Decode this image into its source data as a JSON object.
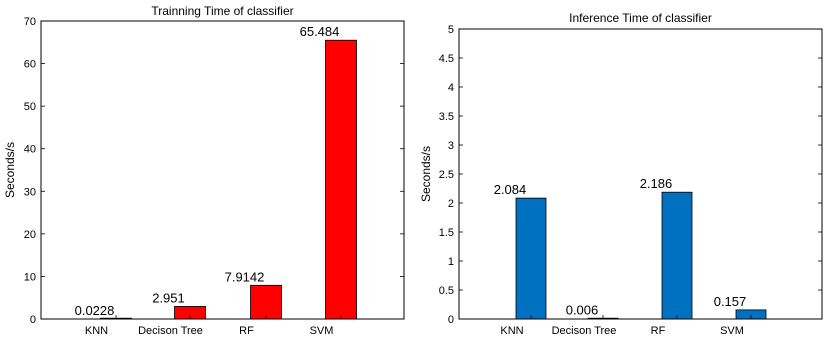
{
  "chart_data": [
    {
      "type": "bar",
      "title": "Trainning Time of classifier",
      "xlabel": "",
      "ylabel": "Seconds/s",
      "categories": [
        "KNN",
        "Decison Tree",
        "RF",
        "SVM"
      ],
      "values": [
        0.0228,
        2.951,
        7.9142,
        65.484
      ],
      "data_labels": [
        "0.0228",
        "2.951",
        "7.9142",
        "65.484"
      ],
      "ylim": [
        0,
        70
      ],
      "yticks": [
        0,
        10,
        20,
        30,
        40,
        50,
        60,
        70
      ],
      "bar_color": "#ff0000",
      "grid": false,
      "legend": null
    },
    {
      "type": "bar",
      "title": "Inference Time of classifier",
      "xlabel": "",
      "ylabel": "Seconds/s",
      "categories": [
        "KNN",
        "Decison Tree",
        "RF",
        "SVM"
      ],
      "values": [
        2.084,
        0.006,
        2.186,
        0.157
      ],
      "data_labels": [
        "2.084",
        "0.006",
        "2.186",
        "0.157"
      ],
      "ylim": [
        0,
        5
      ],
      "yticks": [
        0,
        0.5,
        1,
        1.5,
        2,
        2.5,
        3,
        3.5,
        4,
        4.5,
        5
      ],
      "bar_color": "#0070c0",
      "grid": false,
      "legend": null
    }
  ]
}
